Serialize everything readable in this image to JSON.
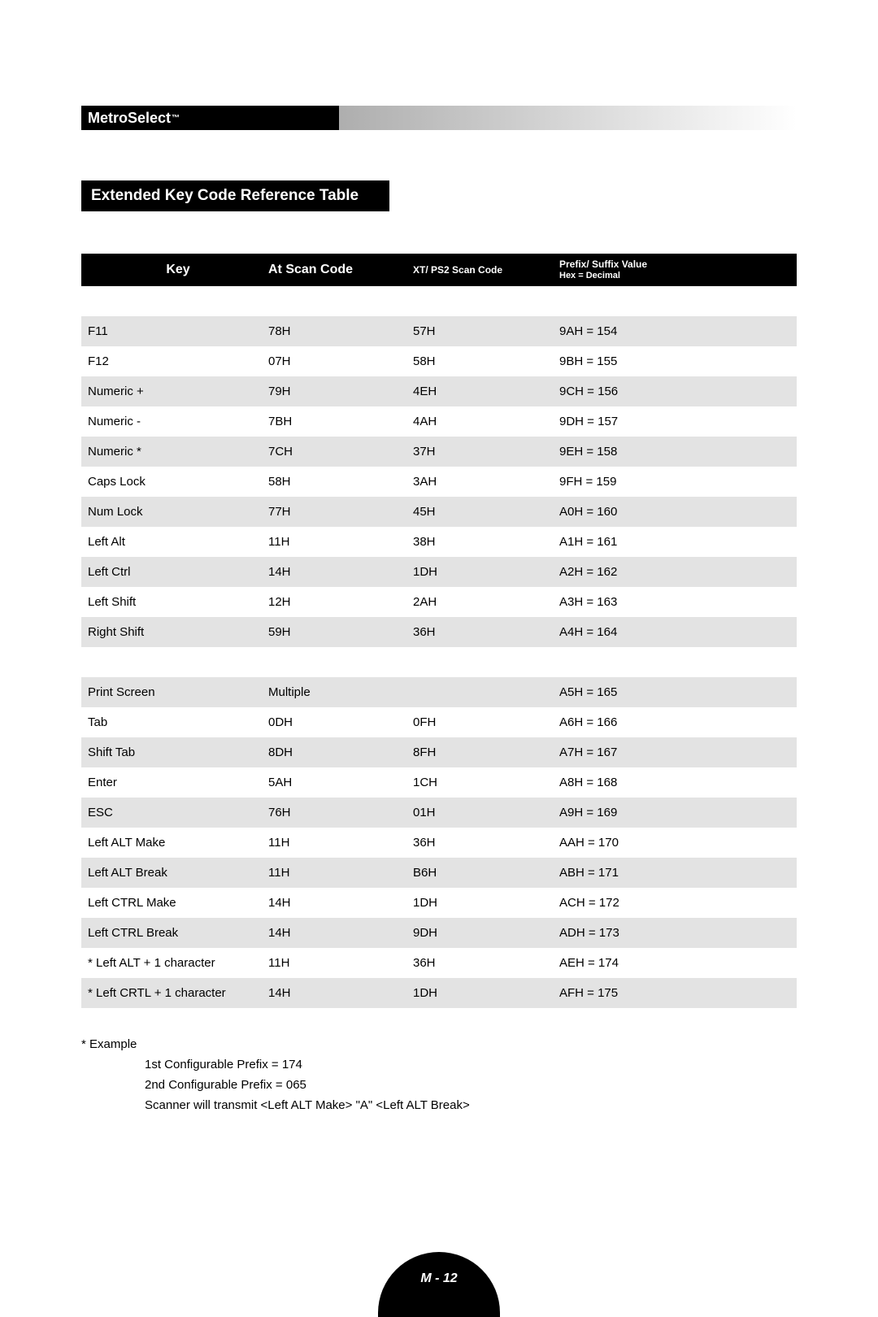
{
  "brand": {
    "name": "MetroSelect",
    "tm": "™"
  },
  "section_title": "Extended Key Code Reference Table",
  "table": {
    "columns": {
      "key": "Key",
      "at": "At Scan Code",
      "xt": "XT/ PS2 Scan Code",
      "prefix": "Prefix/ Suffix Value",
      "prefix_sub": "Hex = Decimal"
    },
    "rows": [
      {
        "alt": true,
        "key": "F11",
        "at": "78H",
        "xt": "57H",
        "val": "9AH = 154"
      },
      {
        "alt": false,
        "key": "F12",
        "at": "07H",
        "xt": "58H",
        "val": "9BH = 155"
      },
      {
        "alt": true,
        "key": "Numeric +",
        "at": "79H",
        "xt": "4EH",
        "val": "9CH = 156"
      },
      {
        "alt": false,
        "key": "Numeric -",
        "at": "7BH",
        "xt": "4AH",
        "val": "9DH = 157"
      },
      {
        "alt": true,
        "key": "Numeric *",
        "at": "7CH",
        "xt": "37H",
        "val": "9EH = 158"
      },
      {
        "alt": false,
        "key": "Caps Lock",
        "at": "58H",
        "xt": "3AH",
        "val": "9FH = 159"
      },
      {
        "alt": true,
        "key": "Num Lock",
        "at": "77H",
        "xt": "45H",
        "val": "A0H = 160"
      },
      {
        "alt": false,
        "key": "Left Alt",
        "at": "11H",
        "xt": "38H",
        "val": "A1H = 161"
      },
      {
        "alt": true,
        "key": "Left Ctrl",
        "at": "14H",
        "xt": "1DH",
        "val": "A2H = 162"
      },
      {
        "alt": false,
        "key": "Left Shift",
        "at": "12H",
        "xt": "2AH",
        "val": "A3H = 163"
      },
      {
        "alt": true,
        "key": "Right Shift",
        "at": "59H",
        "xt": "36H",
        "val": "A4H = 164"
      },
      {
        "spacer": true
      },
      {
        "alt": true,
        "key": "Print Screen",
        "at": "Multiple",
        "xt": "",
        "val": "A5H = 165"
      },
      {
        "alt": false,
        "key": "Tab",
        "at": "0DH",
        "xt": "0FH",
        "val": "A6H = 166"
      },
      {
        "alt": true,
        "key": "Shift Tab",
        "at": "8DH",
        "xt": "8FH",
        "val": "A7H = 167"
      },
      {
        "alt": false,
        "key": "Enter",
        "at": "5AH",
        "xt": "1CH",
        "val": "A8H = 168"
      },
      {
        "alt": true,
        "key": "ESC",
        "at": "76H",
        "xt": "01H",
        "val": "A9H = 169"
      },
      {
        "alt": false,
        "key": "Left ALT Make",
        "at": "11H",
        "xt": "36H",
        "val": "AAH = 170"
      },
      {
        "alt": true,
        "key": "Left ALT Break",
        "at": "11H",
        "xt": "B6H",
        "val": "ABH = 171"
      },
      {
        "alt": false,
        "key": "Left CTRL Make",
        "at": "14H",
        "xt": "1DH",
        "val": "ACH = 172"
      },
      {
        "alt": true,
        "key": "Left CTRL Break",
        "at": "14H",
        "xt": "9DH",
        "val": "ADH = 173"
      },
      {
        "alt": false,
        "key": "* Left ALT + 1 character",
        "at": "11H",
        "xt": "36H",
        "val": "AEH = 174"
      },
      {
        "alt": true,
        "key": "* Left CRTL + 1 character",
        "at": "14H",
        "xt": "1DH",
        "val": "AFH = 175"
      }
    ]
  },
  "notes": {
    "star": "* Example",
    "l1": "1st Configurable Prefix = 174",
    "l2": "2nd Configurable Prefix = 065",
    "l3": "Scanner will transmit <Left ALT Make> \"A\" <Left ALT Break>"
  },
  "page_number": "M - 12"
}
